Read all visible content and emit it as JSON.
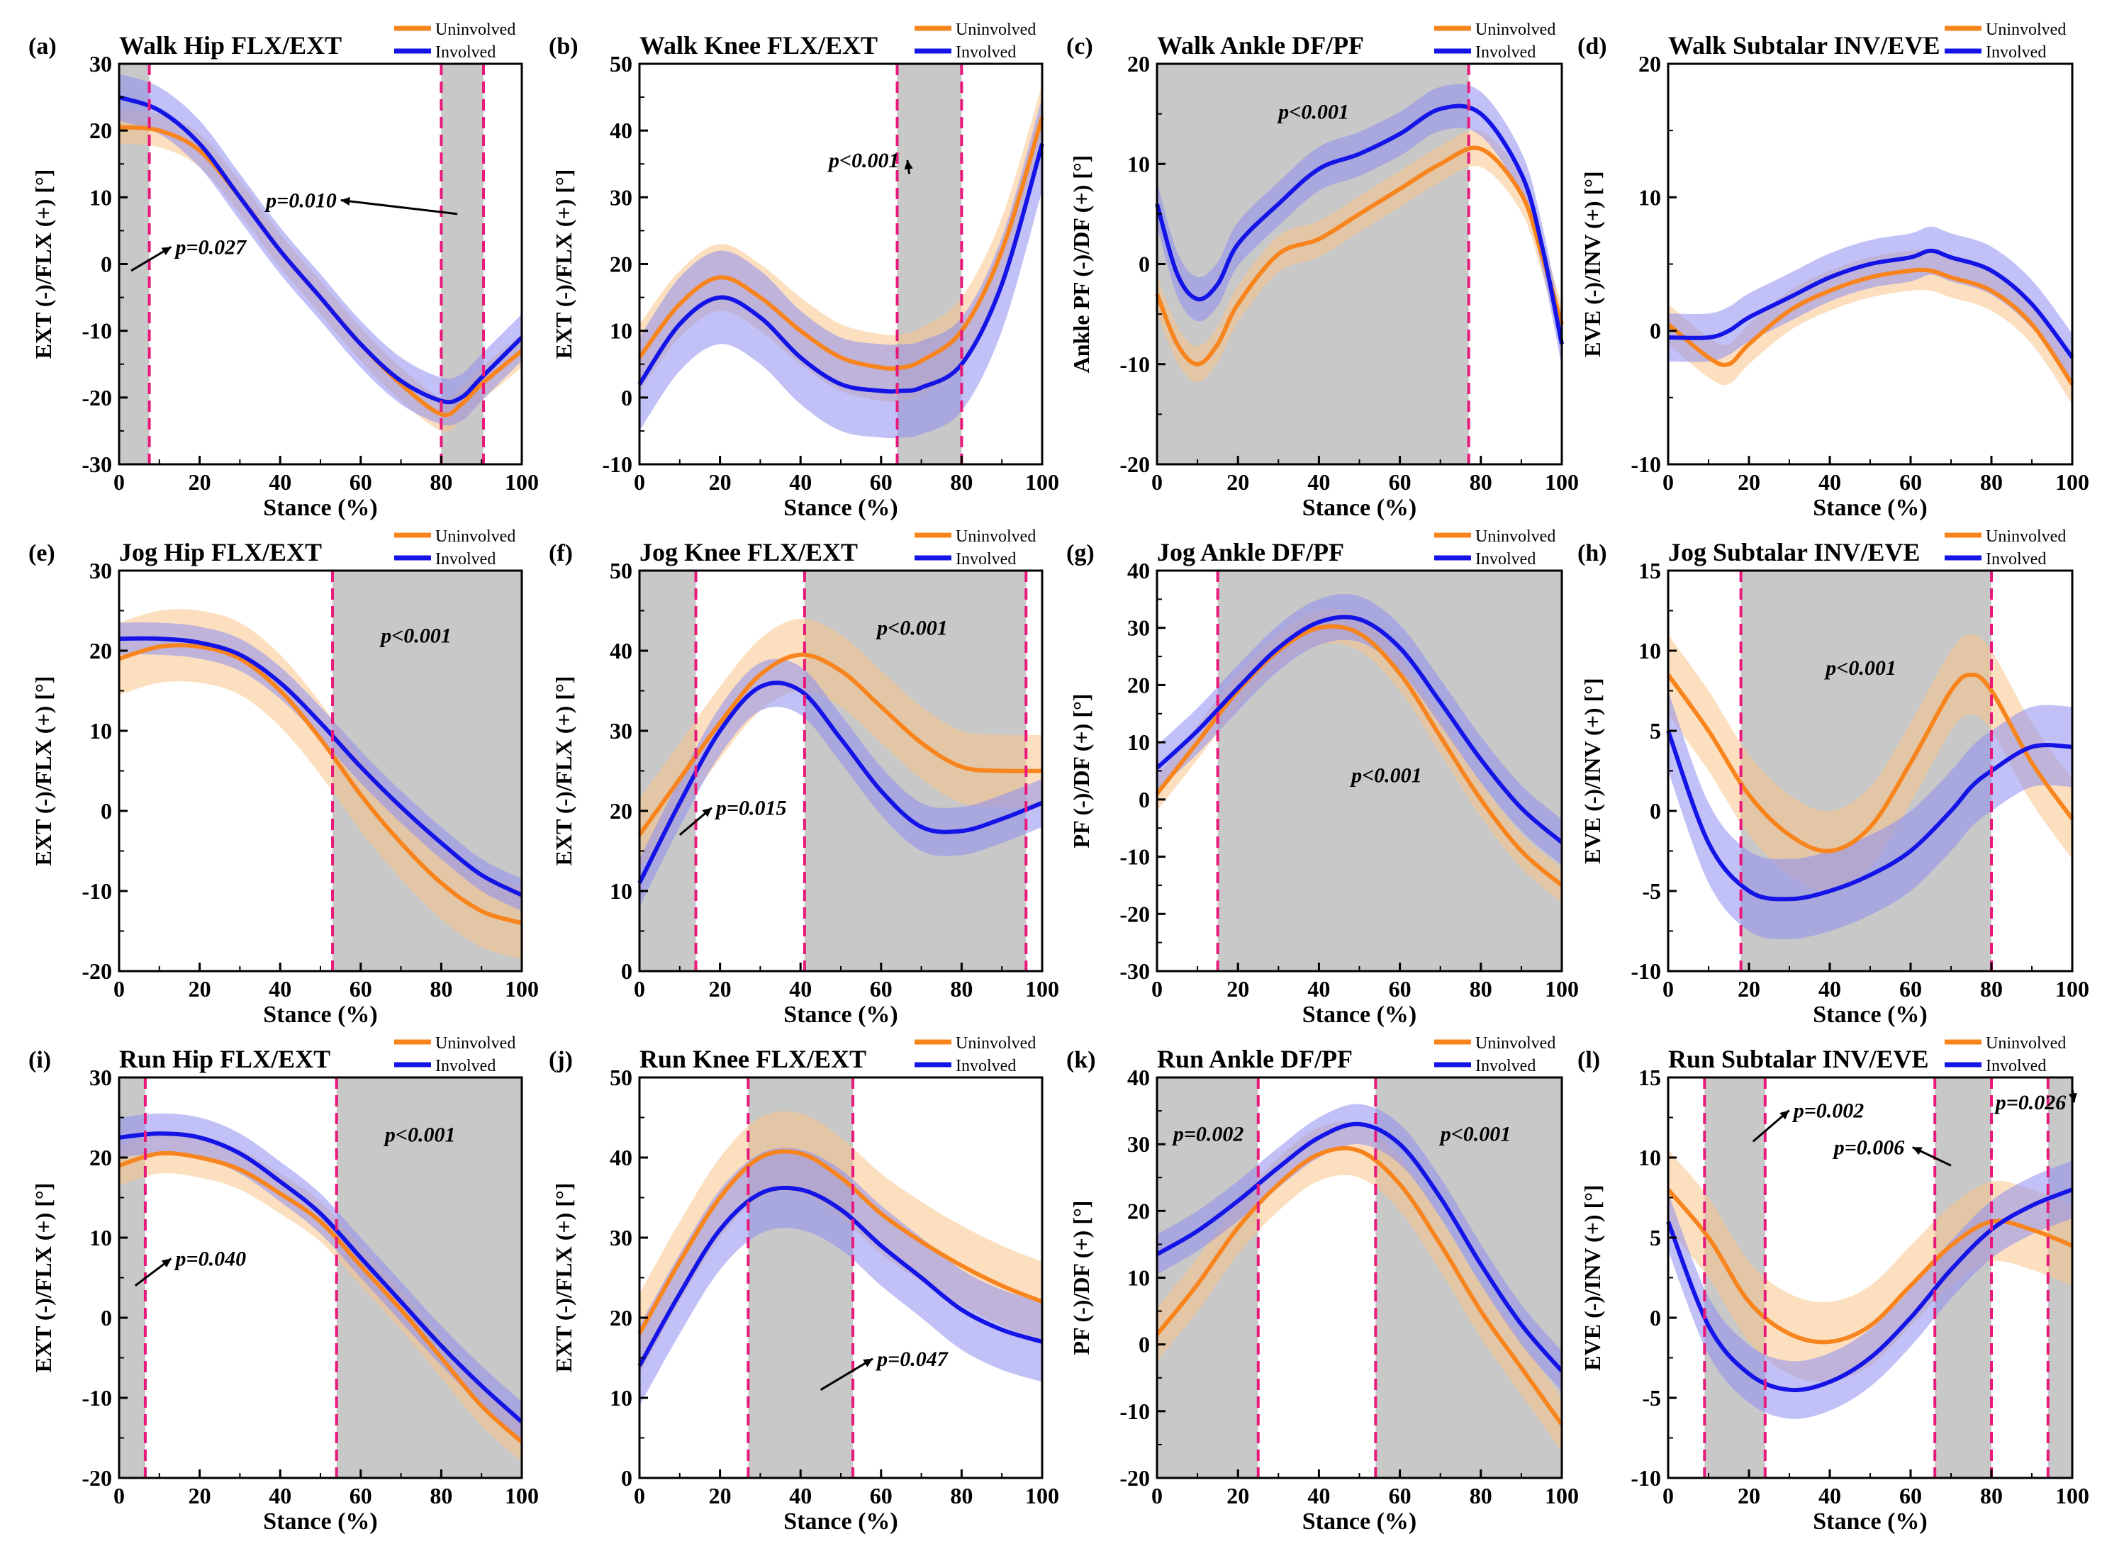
{
  "figure": {
    "colors": {
      "uninvolved": "#F7841D",
      "involved": "#1414E6",
      "uninvolved_band": "#F9C48A",
      "involved_band": "#8E8EF0",
      "shade": "#C8C8C8",
      "sig_line": "#E8197A"
    },
    "legend": {
      "uninvolved": "Uninvolved",
      "involved": "Involved"
    },
    "xlabel": "Stance (%)"
  },
  "chart_data": [
    {
      "id": "a",
      "panel_label": "(a)",
      "type": "line",
      "title": "Walk Hip FLX/EXT",
      "xlabel": "Stance (%)",
      "ylabel": "EXT (-)/FLX (+) [°]",
      "xlim": [
        0,
        100
      ],
      "ylim": [
        -30,
        30
      ],
      "xticks": [
        "0",
        "20",
        "40",
        "60",
        "80",
        "100"
      ],
      "yticks": [
        "-30",
        "-20",
        "-10",
        "0",
        "10",
        "20",
        "30"
      ],
      "x": [
        0,
        10,
        20,
        30,
        40,
        50,
        60,
        70,
        80,
        85,
        90,
        100
      ],
      "series": [
        {
          "name": "Uninvolved",
          "values": [
            20.5,
            20,
            17,
            10,
            2,
            -5,
            -12,
            -18,
            -22.5,
            -21,
            -18,
            -13
          ],
          "band": 2.5
        },
        {
          "name": "Involved",
          "values": [
            25,
            23,
            18,
            10,
            2,
            -5,
            -12,
            -17.5,
            -20.5,
            -20,
            -17,
            -11
          ],
          "band": 3.5
        }
      ],
      "shaded_regions": [
        [
          0,
          7.5
        ],
        [
          80,
          90.5
        ]
      ],
      "annotations": [
        {
          "text": "p=0.027",
          "x": 14,
          "y": 1.5,
          "arrow": [
            3,
            -1
          ]
        },
        {
          "text": "p=0.010",
          "x": 54,
          "y": 8.5,
          "arrow": [
            84,
            7.5
          ],
          "anchor": "end"
        }
      ]
    },
    {
      "id": "b",
      "panel_label": "(b)",
      "type": "line",
      "title": "Walk Knee FLX/EXT",
      "xlabel": "Stance (%)",
      "ylabel": "EXT (-)/FLX (+) [°]",
      "xlim": [
        0,
        100
      ],
      "ylim": [
        -10,
        50
      ],
      "xticks": [
        "0",
        "20",
        "40",
        "60",
        "80",
        "100"
      ],
      "yticks": [
        "-10",
        "0",
        "10",
        "20",
        "30",
        "40",
        "50"
      ],
      "x": [
        0,
        10,
        20,
        30,
        40,
        50,
        60,
        65,
        70,
        80,
        90,
        100
      ],
      "series": [
        {
          "name": "Uninvolved",
          "values": [
            6,
            14,
            18,
            15,
            10,
            6,
            4.5,
            4.5,
            5.5,
            10,
            22,
            42
          ],
          "band": 5
        },
        {
          "name": "Involved",
          "values": [
            2,
            11,
            15,
            12,
            6,
            2,
            1,
            1,
            1.5,
            5,
            17,
            38
          ],
          "band": 7
        }
      ],
      "shaded_regions": [
        [
          64,
          80
        ]
      ],
      "annotations": [
        {
          "text": "p<0.001",
          "x": 47,
          "y": 34.5,
          "arrow": [
            67,
            33.5
          ]
        }
      ]
    },
    {
      "id": "c",
      "panel_label": "(c)",
      "type": "line",
      "title": "Walk Ankle DF/PF",
      "xlabel": "Stance (%)",
      "ylabel": "Ankle PF (-)/DF (+) [°]",
      "xlim": [
        0,
        100
      ],
      "ylim": [
        -20,
        20
      ],
      "xticks": [
        "0",
        "20",
        "40",
        "60",
        "80",
        "100"
      ],
      "yticks": [
        "-20",
        "-10",
        "0",
        "10",
        "20"
      ],
      "x": [
        0,
        5,
        10,
        15,
        20,
        30,
        40,
        50,
        60,
        70,
        80,
        90,
        95,
        100
      ],
      "series": [
        {
          "name": "Uninvolved",
          "values": [
            -3,
            -8,
            -10,
            -8,
            -4,
            1,
            2.5,
            5,
            7.5,
            10,
            11.5,
            7,
            1,
            -6
          ],
          "band": 1.8
        },
        {
          "name": "Involved",
          "values": [
            6,
            -1,
            -3.5,
            -2,
            2,
            6,
            9.5,
            11,
            13,
            15.5,
            15,
            9,
            2,
            -8
          ],
          "band": 2.2
        }
      ],
      "shaded_regions": [
        [
          0,
          77
        ]
      ],
      "annotations": [
        {
          "text": "p<0.001",
          "x": 30,
          "y": 14.5
        }
      ]
    },
    {
      "id": "d",
      "panel_label": "(d)",
      "type": "line",
      "title": "Walk Subtalar INV/EVE",
      "xlabel": "Stance (%)",
      "ylabel": "EVE (-)/INV (+) [°]",
      "xlim": [
        0,
        100
      ],
      "ylim": [
        -10,
        20
      ],
      "xticks": [
        "0",
        "20",
        "40",
        "60",
        "80",
        "100"
      ],
      "yticks": [
        "-10",
        "0",
        "10",
        "20"
      ],
      "x": [
        0,
        10,
        15,
        20,
        30,
        40,
        50,
        60,
        65,
        70,
        80,
        90,
        100
      ],
      "series": [
        {
          "name": "Uninvolved",
          "values": [
            0.5,
            -2,
            -2.5,
            -1,
            1.5,
            3,
            4,
            4.5,
            4.5,
            4,
            3,
            0.5,
            -4
          ],
          "band": 1.5
        },
        {
          "name": "Involved",
          "values": [
            -0.5,
            -0.5,
            0,
            1,
            2.5,
            4,
            5,
            5.5,
            6,
            5.5,
            4.5,
            2,
            -2
          ],
          "band": 1.8
        }
      ],
      "shaded_regions": [],
      "annotations": []
    },
    {
      "id": "e",
      "panel_label": "(e)",
      "type": "line",
      "title": "Jog Hip FLX/EXT",
      "xlabel": "Stance (%)",
      "ylabel": "EXT (-)/FLX (+) [°]",
      "xlim": [
        0,
        100
      ],
      "ylim": [
        -20,
        30
      ],
      "xticks": [
        "0",
        "20",
        "40",
        "60",
        "80",
        "100"
      ],
      "yticks": [
        "-20",
        "-10",
        "0",
        "10",
        "20",
        "30"
      ],
      "x": [
        0,
        10,
        20,
        30,
        40,
        50,
        60,
        70,
        80,
        90,
        100
      ],
      "series": [
        {
          "name": "Uninvolved",
          "values": [
            19,
            20.5,
            20.5,
            19,
            15,
            9,
            2,
            -4,
            -9,
            -12.5,
            -14
          ],
          "band": 4.5
        },
        {
          "name": "Involved",
          "values": [
            21.5,
            21.5,
            21,
            19.5,
            16,
            11,
            5.5,
            0.5,
            -4,
            -8,
            -10.5
          ],
          "band": 2
        }
      ],
      "shaded_regions": [
        [
          53,
          100
        ]
      ],
      "annotations": [
        {
          "text": "p<0.001",
          "x": 65,
          "y": 21
        }
      ]
    },
    {
      "id": "f",
      "panel_label": "(f)",
      "type": "line",
      "title": "Jog Knee FLX/EXT",
      "xlabel": "Stance (%)",
      "ylabel": "EXT (-)/FLX (+) [°]",
      "xlim": [
        0,
        100
      ],
      "ylim": [
        0,
        50
      ],
      "xticks": [
        "0",
        "20",
        "40",
        "60",
        "80",
        "100"
      ],
      "yticks": [
        "0",
        "10",
        "20",
        "30",
        "40",
        "50"
      ],
      "x": [
        0,
        10,
        20,
        30,
        40,
        50,
        60,
        70,
        80,
        90,
        100
      ],
      "series": [
        {
          "name": "Uninvolved",
          "values": [
            17,
            24,
            31,
            37,
            39.5,
            37.5,
            33,
            28.5,
            25.5,
            25,
            25
          ],
          "band": 4.5
        },
        {
          "name": "Involved",
          "values": [
            11,
            21,
            30,
            35.5,
            35,
            29,
            22.5,
            18,
            17.5,
            19,
            21
          ],
          "band": 3
        }
      ],
      "shaded_regions": [
        [
          0,
          14
        ],
        [
          41,
          96
        ]
      ],
      "annotations": [
        {
          "text": "p<0.001",
          "x": 59,
          "y": 42
        },
        {
          "text": "p=0.015",
          "x": 19,
          "y": 19.5,
          "arrow": [
            10,
            17
          ]
        }
      ]
    },
    {
      "id": "g",
      "panel_label": "(g)",
      "type": "line",
      "title": "Jog Ankle DF/PF",
      "xlabel": "Stance (%)",
      "ylabel": "PF (-)/DF (+) [°]",
      "xlim": [
        0,
        100
      ],
      "ylim": [
        -30,
        40
      ],
      "xticks": [
        "0",
        "20",
        "40",
        "60",
        "80",
        "100"
      ],
      "yticks": [
        "-30",
        "-20",
        "-10",
        "0",
        "10",
        "20",
        "30",
        "40"
      ],
      "x": [
        0,
        10,
        20,
        30,
        40,
        50,
        60,
        70,
        80,
        90,
        100
      ],
      "series": [
        {
          "name": "Uninvolved",
          "values": [
            1,
            10,
            19,
            26,
            30,
            29,
            22,
            11,
            0,
            -9,
            -15
          ],
          "band": 3
        },
        {
          "name": "Involved",
          "values": [
            5.5,
            12,
            19.5,
            26.5,
            31,
            31.5,
            26.5,
            17,
            7,
            -1.5,
            -7.5
          ],
          "band": 4
        }
      ],
      "shaded_regions": [
        [
          15,
          100
        ]
      ],
      "annotations": [
        {
          "text": "p<0.001",
          "x": 48,
          "y": 3
        }
      ]
    },
    {
      "id": "h",
      "panel_label": "(h)",
      "type": "line",
      "title": "Jog Subtalar INV/EVE",
      "xlabel": "Stance (%)",
      "ylabel": "EVE (-)/INV (+) [°]",
      "xlim": [
        0,
        100
      ],
      "ylim": [
        -10,
        15
      ],
      "xticks": [
        "0",
        "20",
        "40",
        "60",
        "80",
        "100"
      ],
      "yticks": [
        "-10",
        "-5",
        "0",
        "5",
        "10",
        "15"
      ],
      "x": [
        0,
        10,
        20,
        30,
        40,
        50,
        60,
        70,
        75,
        80,
        90,
        100
      ],
      "series": [
        {
          "name": "Uninvolved",
          "values": [
            8.5,
            5,
            1,
            -1.5,
            -2.5,
            -1,
            3,
            7.5,
            8.5,
            7.5,
            3,
            -0.5
          ],
          "band": 2.5
        },
        {
          "name": "Involved",
          "values": [
            5,
            -2,
            -5,
            -5.5,
            -5,
            -4,
            -2.5,
            0,
            1.5,
            2.5,
            4,
            4
          ],
          "band": 2.5
        }
      ],
      "shaded_regions": [
        [
          18,
          80
        ]
      ],
      "annotations": [
        {
          "text": "p<0.001",
          "x": 39,
          "y": 8.5
        }
      ]
    },
    {
      "id": "i",
      "panel_label": "(i)",
      "type": "line",
      "title": "Run Hip FLX/EXT",
      "xlabel": "Stance (%)",
      "ylabel": "EXT (-)/FLX (+) [°]",
      "xlim": [
        0,
        100
      ],
      "ylim": [
        -20,
        30
      ],
      "xticks": [
        "0",
        "20",
        "40",
        "60",
        "80",
        "100"
      ],
      "yticks": [
        "-20",
        "-10",
        "0",
        "10",
        "20",
        "30"
      ],
      "x": [
        0,
        10,
        20,
        30,
        40,
        50,
        60,
        70,
        80,
        90,
        100
      ],
      "series": [
        {
          "name": "Uninvolved",
          "values": [
            19,
            20.5,
            20,
            18.5,
            15.5,
            12,
            6.5,
            1,
            -5,
            -11,
            -15.5
          ],
          "band": 2.5
        },
        {
          "name": "Involved",
          "values": [
            22.5,
            23,
            22.5,
            20.5,
            17,
            13,
            7.5,
            2,
            -3.5,
            -8.5,
            -13
          ],
          "band": 2.5
        }
      ],
      "shaded_regions": [
        [
          0,
          6.5
        ],
        [
          54,
          100
        ]
      ],
      "annotations": [
        {
          "text": "p<0.001",
          "x": 66,
          "y": 22
        },
        {
          "text": "p=0.040",
          "x": 14,
          "y": 6.5,
          "arrow": [
            4,
            4
          ]
        }
      ]
    },
    {
      "id": "j",
      "panel_label": "(j)",
      "type": "line",
      "title": "Run Knee FLX/EXT",
      "xlabel": "Stance (%)",
      "ylabel": "EXT (-)/FLX (+) [°]",
      "xlim": [
        0,
        100
      ],
      "ylim": [
        0,
        50
      ],
      "xticks": [
        "0",
        "20",
        "40",
        "60",
        "80",
        "100"
      ],
      "yticks": [
        "0",
        "10",
        "20",
        "30",
        "40",
        "50"
      ],
      "x": [
        0,
        10,
        20,
        30,
        40,
        50,
        60,
        70,
        80,
        90,
        100
      ],
      "series": [
        {
          "name": "Uninvolved",
          "values": [
            18,
            27,
            35,
            40,
            40.5,
            37.5,
            33,
            29.5,
            26.5,
            24,
            22
          ],
          "band": 5
        },
        {
          "name": "Involved",
          "values": [
            14,
            23,
            31,
            35.5,
            36,
            33.5,
            29,
            25,
            21,
            18.5,
            17
          ],
          "band": 5
        }
      ],
      "shaded_regions": [
        [
          27,
          53
        ]
      ],
      "annotations": [
        {
          "text": "p=0.047",
          "x": 59,
          "y": 14,
          "arrow": [
            45,
            11
          ]
        }
      ]
    },
    {
      "id": "k",
      "panel_label": "(k)",
      "type": "line",
      "title": "Run Ankle DF/PF",
      "xlabel": "Stance (%)",
      "ylabel": "PF (-)/DF (+) [°]",
      "xlim": [
        0,
        100
      ],
      "ylim": [
        -20,
        40
      ],
      "xticks": [
        "0",
        "20",
        "40",
        "60",
        "80",
        "100"
      ],
      "yticks": [
        "-20",
        "-10",
        "0",
        "10",
        "20",
        "30",
        "40"
      ],
      "x": [
        0,
        10,
        20,
        30,
        40,
        50,
        60,
        70,
        80,
        90,
        100
      ],
      "series": [
        {
          "name": "Uninvolved",
          "values": [
            1.5,
            9,
            17.5,
            24,
            28.5,
            29,
            24,
            15,
            5,
            -3.5,
            -12
          ],
          "band": 4
        },
        {
          "name": "Involved",
          "values": [
            13.5,
            17,
            21.5,
            26.5,
            31,
            33,
            30,
            22,
            12,
            3,
            -4
          ],
          "band": 3
        }
      ],
      "shaded_regions": [
        [
          0,
          25
        ],
        [
          54,
          100
        ]
      ],
      "annotations": [
        {
          "text": "p=0.002",
          "x": 4,
          "y": 30.5
        },
        {
          "text": "p<0.001",
          "x": 70,
          "y": 30.5
        }
      ]
    },
    {
      "id": "l",
      "panel_label": "(l)",
      "type": "line",
      "title": "Run Subtalar INV/EVE",
      "xlabel": "Stance (%)",
      "ylabel": "EVE (-)/INV (+) [°]",
      "xlim": [
        0,
        100
      ],
      "ylim": [
        -10,
        15
      ],
      "xticks": [
        "0",
        "20",
        "40",
        "60",
        "80",
        "100"
      ],
      "yticks": [
        "-10",
        "-5",
        "0",
        "5",
        "10",
        "15"
      ],
      "x": [
        0,
        10,
        20,
        30,
        40,
        50,
        60,
        70,
        80,
        90,
        100
      ],
      "series": [
        {
          "name": "Uninvolved",
          "values": [
            8,
            5,
            1,
            -1,
            -1.5,
            -0.5,
            2,
            4.5,
            6,
            5.5,
            4.5
          ],
          "band": 2.5
        },
        {
          "name": "Involved",
          "values": [
            6,
            -0.5,
            -3.5,
            -4.5,
            -4,
            -2.5,
            0,
            3,
            5.5,
            7,
            8
          ],
          "band": 1.8
        }
      ],
      "shaded_regions": [
        [
          9,
          24
        ],
        [
          66,
          80
        ],
        [
          94,
          100
        ]
      ],
      "annotations": [
        {
          "text": "p=0.002",
          "x": 31,
          "y": 12.5,
          "arrow": [
            21,
            11
          ]
        },
        {
          "text": "p=0.006",
          "x": 41,
          "y": 10.2,
          "arrow": [
            70,
            9.5
          ]
        },
        {
          "text": "p=0.026",
          "x": 81,
          "y": 13,
          "arrow": [
            100,
            14.3
          ]
        }
      ]
    }
  ]
}
